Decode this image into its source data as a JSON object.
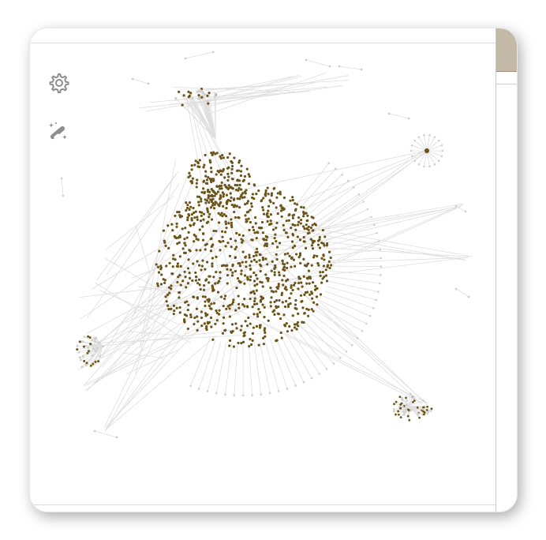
{
  "app": {
    "title": ""
  },
  "toolbar": {
    "settings_icon": "gear-icon",
    "layout_icon": "magic-wand-icon"
  },
  "graph": {
    "node_color": "#6b5418",
    "leaf_color": "#cfcfcf",
    "edge_color": "#dedede"
  }
}
